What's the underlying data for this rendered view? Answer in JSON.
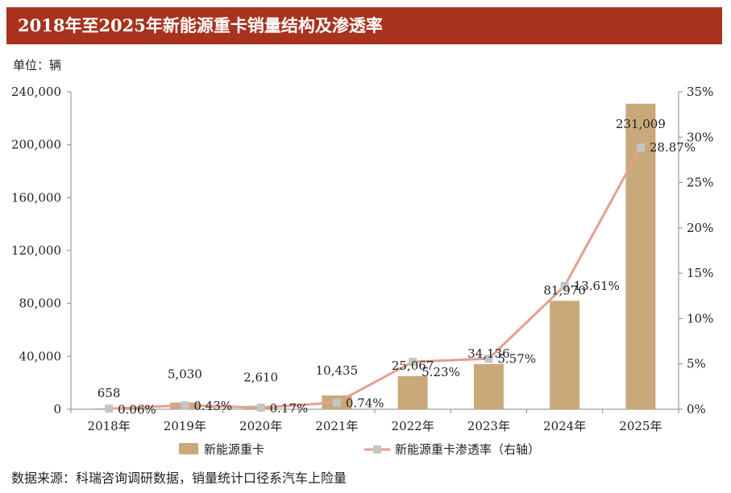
{
  "title": "2018年至2025年新能源重卡销量结构及渗透率",
  "unit_label": "单位：辆",
  "source": "数据来源：科瑞咨询调研数据，销量统计口径系汽车上险量",
  "colors": {
    "title_bg": "#a8321e",
    "bar": "#c9a97a",
    "line": "#e2a08e",
    "marker": "#c5c5c5"
  },
  "chart_data": {
    "type": "bar",
    "categories": [
      "2018年",
      "2019年",
      "2020年",
      "2021年",
      "2022年",
      "2023年",
      "2024年",
      "2025年"
    ],
    "series": [
      {
        "name": "新能源重卡",
        "type": "bar",
        "axis": "left",
        "values": [
          658,
          5030,
          2610,
          10435,
          25067,
          34136,
          81970,
          231009
        ],
        "labels": [
          "658",
          "5,030",
          "2,610",
          "10,435",
          "25,067",
          "34,136",
          "81,970",
          "231,009"
        ]
      },
      {
        "name": "新能源重卡渗透率（右轴）",
        "type": "line",
        "axis": "right",
        "values": [
          0.06,
          0.43,
          0.17,
          0.74,
          5.23,
          5.57,
          13.61,
          28.87
        ],
        "labels": [
          "0.06%",
          "0.43%",
          "0.17%",
          "0.74%",
          "5.23%",
          "5.57%",
          "13.61%",
          "28.87%"
        ]
      }
    ],
    "y_left": {
      "min": 0,
      "max": 240000,
      "ticks": [
        "0",
        "40,000",
        "80,000",
        "120,000",
        "160,000",
        "200,000",
        "240,000"
      ]
    },
    "y_right": {
      "min": 0,
      "max": 35,
      "ticks": [
        "0%",
        "5%",
        "10%",
        "15%",
        "20%",
        "25%",
        "30%",
        "35%"
      ]
    },
    "legend_position": "bottom",
    "grid": false
  }
}
